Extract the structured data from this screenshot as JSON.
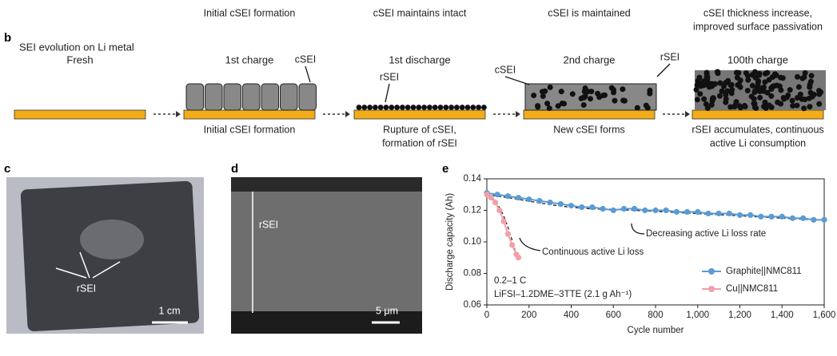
{
  "top_captions": [
    [
      "Initial cSEI formation"
    ],
    [
      "cSEI maintains intact"
    ],
    [
      "cSEI is maintained"
    ],
    [
      "cSEI thickness increase,",
      "improved surface passivation"
    ]
  ],
  "panel_labels": [
    "b",
    "c",
    "d",
    "e"
  ],
  "panel_b": {
    "title": "SEI evolution on Li metal",
    "stages": [
      "Fresh",
      "1st charge",
      "1st discharge",
      "2nd charge",
      "100th charge"
    ],
    "captions": [
      [
        "Initial cSEI formation"
      ],
      [
        "Rupture of cSEI,",
        "formation of rSEI"
      ],
      [
        "New cSEI forms"
      ],
      [
        "rSEI accumulates, continuous",
        "active Li consumption"
      ]
    ],
    "callouts": [
      "cSEI",
      "rSEI",
      "cSEI",
      "rSEI"
    ]
  },
  "panel_c": {
    "label": "rSEI",
    "scale_bar": "1 cm"
  },
  "panel_d": {
    "label": "rSEI",
    "scale_bar": "5 μm"
  },
  "chart_data": {
    "type": "scatter-line",
    "xlabel": "Cycle number",
    "ylabel": "Discharge capacity (Ah)",
    "xlim": [
      0,
      1600
    ],
    "ylim": [
      0.06,
      0.14
    ],
    "xticks": [
      0,
      200,
      400,
      600,
      800,
      {
        "value": 1000,
        "label": "1,000"
      },
      {
        "value": 1200,
        "label": "1,200"
      },
      {
        "value": 1400,
        "label": "1,400"
      },
      {
        "value": 1600,
        "label": "1,600"
      }
    ],
    "yticks": [
      0.06,
      0.08,
      {
        "value": 0.1,
        "label": "0.10"
      },
      0.12,
      0.14
    ],
    "annotations": [
      "Continuous active Li loss",
      "Decreasing active Li loss rate",
      "0.2–1 C",
      "LiFSI–1.2DME–3TTE (2.1 g Ah⁻¹)"
    ],
    "legend": "lower right",
    "series": [
      {
        "name": "Graphite||NMC811",
        "color": "#5b9bd5",
        "x": [
          0,
          50,
          100,
          150,
          200,
          250,
          300,
          350,
          400,
          450,
          500,
          550,
          600,
          650,
          700,
          750,
          800,
          850,
          900,
          950,
          1000,
          1050,
          1100,
          1150,
          1200,
          1250,
          1300,
          1350,
          1400,
          1450,
          1500,
          1550,
          1600
        ],
        "values": [
          0.131,
          0.13,
          0.129,
          0.128,
          0.127,
          0.126,
          0.125,
          0.124,
          0.123,
          0.122,
          0.122,
          0.121,
          0.12,
          0.121,
          0.121,
          0.12,
          0.12,
          0.12,
          0.119,
          0.119,
          0.119,
          0.118,
          0.118,
          0.118,
          0.117,
          0.117,
          0.116,
          0.116,
          0.116,
          0.115,
          0.115,
          0.114,
          0.114
        ]
      },
      {
        "name": "Cu||NMC811",
        "color": "#f2a0a8",
        "x": [
          0,
          20,
          40,
          60,
          80,
          100,
          120,
          140,
          150
        ],
        "values": [
          0.13,
          0.128,
          0.125,
          0.12,
          0.113,
          0.105,
          0.098,
          0.092,
          0.09
        ]
      }
    ]
  }
}
